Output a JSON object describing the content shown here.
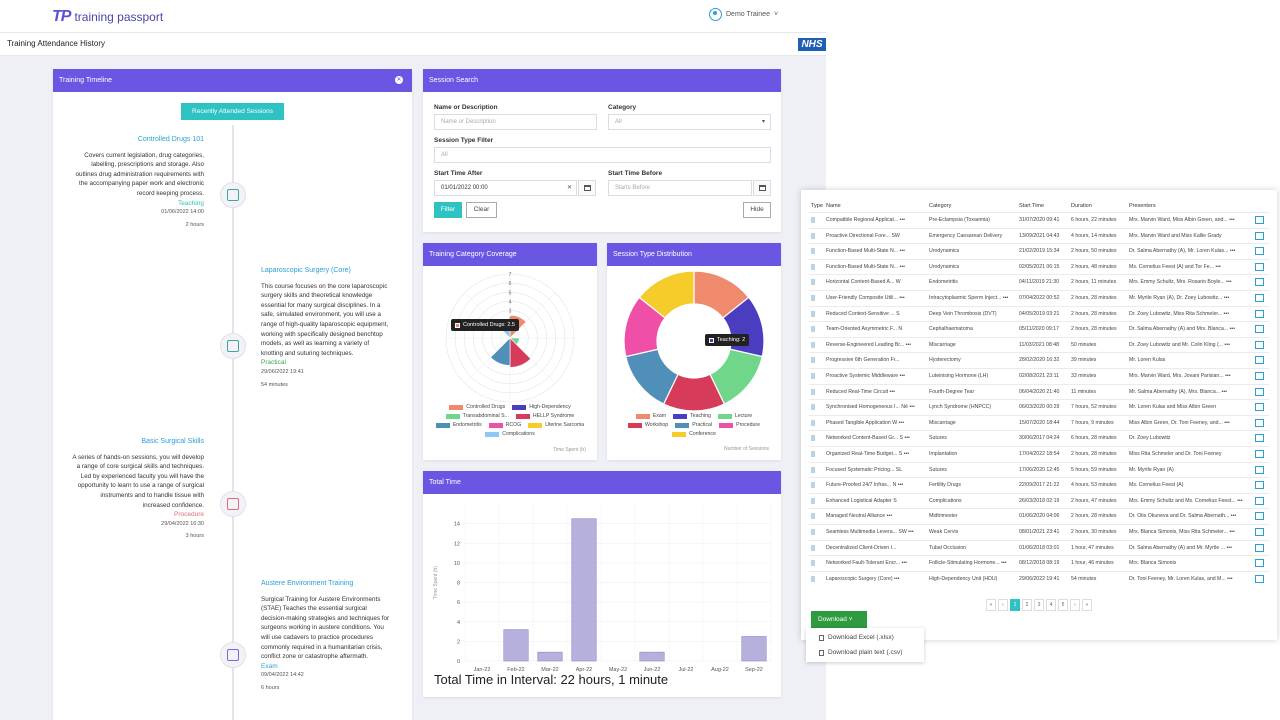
{
  "brand": {
    "mark": "TP",
    "name": "training passport"
  },
  "user": {
    "name": "Demo Trainee"
  },
  "page": {
    "title": "Training Attendance History",
    "nhs": "NHS"
  },
  "timeline": {
    "title": "Training Timeline",
    "button": "Recently Attended Sessions",
    "entries": [
      {
        "title": "Controlled Drugs 101",
        "desc": "Covers current legislation, drug categories, labelling, prescriptions and storage. Also outlines drug administration requirements with the accompanying paper work and electronic record keeping process.",
        "type": "Teaching",
        "date": "01/06/2022 14:00",
        "duration": "2 hours"
      },
      {
        "title": "Laparoscopic Surgery (Core)",
        "desc": "This course focuses on the core laparoscopic surgery skills and theoretical knowledge essential for many surgical disciplines. In a safe, simulated environment, you will use a range of high-quality laparoscopic equipment, working with specifically designed benchtop models, as well as learning a variety of knotting and suturing techniques.",
        "type": "Practical",
        "date": "29/06/2022 19:41",
        "duration": "54 minutes"
      },
      {
        "title": "Basic Surgical Skills",
        "desc": "A series of hands-on sessions, you will develop a range of core surgical skills and techniques. Led by experienced faculty you will have the opportunity to learn to use a range of surgical instruments and to handle tissue with increased confidence.",
        "type": "Procedure",
        "date": "29/04/2022 16:30",
        "duration": "3 hours"
      },
      {
        "title": "Austere Environment Training",
        "desc": "Surgical Training for Austere Environments (STAE) Teaches the essential surgical decision-making strategies and techniques for surgeons working in austere conditions. You will use cadavers to practice procedures commonly required in a humanitarian crisis, conflict zone or catastrophe aftermath.",
        "type": "Exam",
        "date": "09/04/2022 14:42",
        "duration": "6 hours"
      }
    ]
  },
  "search": {
    "title": "Session Search",
    "name_label": "Name or Description",
    "name_placeholder": "Name or Description",
    "category_label": "Category",
    "category_value": "All",
    "type_label": "Session Type Filter",
    "type_value": "All",
    "after_label": "Start Time After",
    "after_value": "01/01/2022 00:00",
    "before_label": "Start Time Before",
    "before_placeholder": "Starts Before",
    "filter": "Filter",
    "clear": "Clear",
    "hide": "Hide"
  },
  "coverage": {
    "title": "Training Category Coverage",
    "footer": "Time Spent (h)",
    "tooltip": "Controlled Drugs: 2.5",
    "accent": "#6957e3"
  },
  "distribution": {
    "title": "Session Type Distribution",
    "footer": "Number of Sessions",
    "tooltip": "Teaching: 2"
  },
  "total": {
    "title": "Total Time",
    "ylabel": "Time Spent (h)",
    "summary": "Total Time in Interval: 22 hours, 1 minute"
  },
  "chart_data": [
    {
      "type": "polar-area",
      "title": "Training Category Coverage",
      "ylim": [
        0,
        7
      ],
      "ticks": [
        "1",
        "2",
        "3",
        "4",
        "5",
        "6",
        "7"
      ],
      "categories": [
        "Controlled Drugs",
        "High-Dependency",
        "Transabdominal S...",
        "HELLP Syndrome",
        "Endometritis",
        "RCOG",
        "Uterine Sarcoma",
        "Complications"
      ],
      "values": [
        2.5,
        0,
        1,
        3.2,
        3,
        0,
        0,
        1.5
      ],
      "colors": [
        "#f08a6c",
        "#4b3dbf",
        "#6fd68a",
        "#d63c5a",
        "#4f8fb8",
        "#f04fa8",
        "#f5cc2a",
        "#8ec6f5"
      ]
    },
    {
      "type": "doughnut",
      "title": "Session Type Distribution",
      "categories": [
        "Exam",
        "Teaching",
        "Lecture",
        "Workshop",
        "Practical",
        "Procedure",
        "Conference"
      ],
      "values": [
        2,
        2,
        2,
        2,
        2,
        2,
        2
      ],
      "colors": [
        "#f08a6c",
        "#4b3dbf",
        "#6fd68a",
        "#d63c5a",
        "#4f8fb8",
        "#f04fa8",
        "#f5cc2a"
      ]
    },
    {
      "type": "bar",
      "title": "Total Time",
      "categories": [
        "Jan-22",
        "Feb-22",
        "Mar-22",
        "Apr-22",
        "May-22",
        "Jun-22",
        "Jul-22",
        "Aug-22",
        "Sep-22"
      ],
      "values": [
        0,
        3.2,
        0.9,
        14.5,
        0,
        0.9,
        0,
        0,
        2.5
      ],
      "ylim": [
        0,
        16
      ],
      "yticks": [
        "0",
        "2",
        "4",
        "6",
        "8",
        "10",
        "12",
        "14"
      ],
      "ylabel": "Time Spent (h)",
      "color": "#b6b0dc"
    }
  ],
  "table": {
    "headers": {
      "type": "Type",
      "name": "Name",
      "category": "Category",
      "start": "Start Time",
      "duration": "Duration",
      "presenters": "Presenters"
    },
    "rows": [
      [
        "Compatible Regional Applicat... •••",
        "Pre-Eclampsia (Toxaemia)",
        "31/07/2020 09:41",
        "6 hours, 22 minutes",
        "Mrs. Marvin Ward, Miss Albin Green, and... •••"
      ],
      [
        "Proactive Directional Fore... SW",
        "Emergency Caesarean Delivery",
        "13/09/2021 04:43",
        "4 hours, 14 minutes",
        "Mrs. Marvin Ward and Miss Kallie Grady"
      ],
      [
        "Function-Based Multi-State N... •••",
        "Urodynamics",
        "21/02/2019 15:34",
        "2 hours, 50 minutes",
        "Dr. Salma Abernathy (A), Mr. Loren Kulas... •••"
      ],
      [
        "Function-Based Multi-State N... •••",
        "Urodynamics",
        "02/05/2021 06:15",
        "2 hours, 48 minutes",
        "Ms. Cornelius Feest (A) and Tor Fe... •••"
      ],
      [
        "Horizontal Content-Based A... W",
        "Endometritis",
        "04/11/2019 21:30",
        "2 hours, 11 minutes",
        "Mrs. Emmy Schultz, Mrs. Rosario Boyle... •••"
      ],
      [
        "User-Friendly Composite Utili... •••",
        "Intracytoplasmic Sperm Inject... •••",
        "07/04/2022 00:52",
        "2 hours, 28 minutes",
        "Mr. Myrtle Ryan (A), Dr. Zoey Lubowitz... •••"
      ],
      [
        "Reduced Context-Sensitive ... S",
        "Deep Vein Thrombosis (DVT)",
        "04/05/2019 03:21",
        "2 hours, 28 minutes",
        "Dr. Zoey Lubowitz, Miss Rita Schmeler... •••"
      ],
      [
        "Team-Oriented Asymmetric F... N",
        "Cephalhaematoma",
        "05/11/2020 09:17",
        "2 hours, 28 minutes",
        "Dr. Salma Abernathy (A) and Mrs. Blanca... •••"
      ],
      [
        "Reverse-Engineered Leading Br... •••",
        "Miscarriage",
        "11/03/2021 08:48",
        "50 minutes",
        "Dr. Zoey Lubowitz and Mr. Colin Kling (... •••"
      ],
      [
        "Progressive 6th Generation Fr...",
        "Hysterectomy",
        "28/02/2020 16:32",
        "39 minutes",
        "Mr. Loren Kulas"
      ],
      [
        "Proactive Systemic Middleware •••",
        "Luteinising Hormone (LH)",
        "02/08/2021 23:11",
        "33 minutes",
        "Mrs. Marvin Ward, Mrs. Jovani Parisian... •••"
      ],
      [
        "Reduced Real-Time Circuit •••",
        "Fourth-Degree Tear",
        "06/04/2020 21:40",
        "11 minutes",
        "Mr. Salma Abernathy (A), Mrs. Blanca... •••"
      ],
      [
        "Synchronised Homogeneous I... Né •••",
        "Lynch Syndrome (HNPCC)",
        "06/03/2020 00:29",
        "7 hours, 52 minutes",
        "Mr. Loren Kulas and Miss Albin Green"
      ],
      [
        "Phased Tangible Application W •••",
        "Miscarriage",
        "15/07/2020 18:44",
        "7 hours, 9 minutes",
        "Miss Albin Green, Dr. Toni Feeney, and... •••"
      ],
      [
        "Networked Content-Based Gr... S •••",
        "Sutures",
        "30/06/2017 04:24",
        "6 hours, 28 minutes",
        "Dr. Zoey Lubowitz"
      ],
      [
        "Organized Real-Time Budget... S •••",
        "Implantation",
        "17/04/2022 18:54",
        "2 hours, 28 minutes",
        "Miss Rita Schmeler and Dr. Toni Feeney"
      ],
      [
        "Focused Systematic Pricing... SL",
        "Sutures",
        "17/06/2020 12:45",
        "5 hours, 59 minutes",
        "Mr. Myrtle Ryan (A)"
      ],
      [
        "Future-Proofed 24/7 Infras... N •••",
        "Fertility Drugs",
        "22/09/2017 21:22",
        "4 hours, 53 minutes",
        "Ms. Cornelius Feest (A)"
      ],
      [
        "Enhanced Logistical Adapter S",
        "Complications",
        "26/03/2018 02:19",
        "2 hours, 47 minutes",
        "Mrs. Emmy Schultz and Ms. Cornelius Feest... •••"
      ],
      [
        "Managed Neutral Alliance •••",
        "Midtrimester",
        "01/06/2020 04:06",
        "2 hours, 28 minutes",
        "Dr. Otis Okuneva and Dr. Salma Abernath... •••"
      ],
      [
        "Seamless Multimedia Levera... SW •••",
        "Weak Cervix",
        "08/01/2021 23:41",
        "2 hours, 30 minutes",
        "Mrs. Blanca Simonis, Miss Rita Schmeler... •••"
      ],
      [
        "Decentralized Client-Driven I...",
        "Tubal Occlusion",
        "01/06/2018 03:01",
        "1 hour, 47 minutes",
        "Dr. Salma Abernathy (A) and Mr. Myrtle ... •••"
      ],
      [
        "Networked Fault-Tolerant Encr... •••",
        "Follicle-Stimulating Hormone... •••",
        "08/12/2018 08:19",
        "1 hour, 46 minutes",
        "Mrs. Blanca Simonis"
      ],
      [
        "Laparoscopic Surgery (Core) •••",
        "High-Dependency Unit (HDU)",
        "29/06/2022 19:41",
        "54 minutes",
        "Dr. Toni Feeney, Mr. Loren Kulas, and M... •••"
      ]
    ]
  },
  "pager": [
    "«",
    "‹",
    "1",
    "2",
    "3",
    "4",
    "5",
    "›",
    "»"
  ],
  "download": {
    "button": "Download ˅",
    "excel": "Download Excel (.xlsx)",
    "csv": "Download plain text (.csv)"
  }
}
